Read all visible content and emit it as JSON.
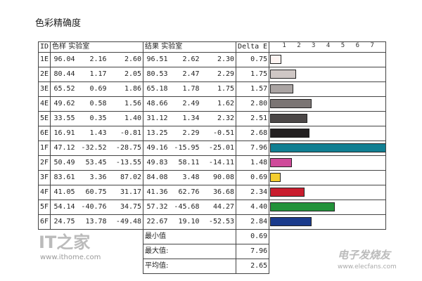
{
  "title": "色彩精确度",
  "headers": {
    "id": "ID",
    "sample": "色样 实验室",
    "result": "结果 实验室",
    "delta": "Delta E"
  },
  "chart_data": {
    "type": "bar",
    "orientation": "horizontal",
    "axis_ticks": [
      "1",
      "2",
      "3",
      "4",
      "5",
      "6",
      "7"
    ],
    "xlim": [
      0,
      7.96
    ],
    "rows": [
      {
        "id": "1E",
        "sample": [
          "96.04",
          "2.16",
          "2.60"
        ],
        "result": [
          "96.51",
          "2.62",
          "2.30"
        ],
        "delta": "0.75",
        "value": 0.75,
        "color": "#fdf4f2"
      },
      {
        "id": "2E",
        "sample": [
          "80.44",
          "1.17",
          "2.05"
        ],
        "result": [
          "80.53",
          "2.47",
          "2.29"
        ],
        "delta": "1.75",
        "value": 1.75,
        "color": "#cfc7c5"
      },
      {
        "id": "3E",
        "sample": [
          "65.52",
          "0.69",
          "1.86"
        ],
        "result": [
          "65.18",
          "1.78",
          "1.75"
        ],
        "delta": "1.57",
        "value": 1.57,
        "color": "#aaa4a3"
      },
      {
        "id": "4E",
        "sample": [
          "49.62",
          "0.58",
          "1.56"
        ],
        "result": [
          "48.66",
          "2.49",
          "1.62"
        ],
        "delta": "2.80",
        "value": 2.8,
        "color": "#7b7574"
      },
      {
        "id": "5E",
        "sample": [
          "33.55",
          "0.35",
          "1.40"
        ],
        "result": [
          "31.12",
          "1.34",
          "2.32"
        ],
        "delta": "2.51",
        "value": 2.51,
        "color": "#4b4747"
      },
      {
        "id": "6E",
        "sample": [
          "16.91",
          "1.43",
          "-0.81"
        ],
        "result": [
          "13.25",
          "2.29",
          "-0.51"
        ],
        "delta": "2.68",
        "value": 2.68,
        "color": "#232021"
      },
      {
        "id": "1F",
        "sample": [
          "47.12",
          "-32.52",
          "-28.75"
        ],
        "result": [
          "49.16",
          "-15.95",
          "-25.01"
        ],
        "delta": "7.96",
        "value": 7.96,
        "color": "#117f92"
      },
      {
        "id": "2F",
        "sample": [
          "50.49",
          "53.45",
          "-13.55"
        ],
        "result": [
          "49.83",
          "58.11",
          "-14.11"
        ],
        "delta": "1.48",
        "value": 1.48,
        "color": "#cf4a9a"
      },
      {
        "id": "3F",
        "sample": [
          "83.61",
          "3.36",
          "87.02"
        ],
        "result": [
          "84.08",
          "3.48",
          "90.08"
        ],
        "delta": "0.69",
        "value": 0.69,
        "color": "#f4cd2e"
      },
      {
        "id": "4F",
        "sample": [
          "41.05",
          "60.75",
          "31.17"
        ],
        "result": [
          "41.36",
          "62.76",
          "36.68"
        ],
        "delta": "2.34",
        "value": 2.34,
        "color": "#c91d2e"
      },
      {
        "id": "5F",
        "sample": [
          "54.14",
          "-40.76",
          "34.75"
        ],
        "result": [
          "57.32",
          "-45.68",
          "44.27"
        ],
        "delta": "4.40",
        "value": 4.4,
        "color": "#23923a"
      },
      {
        "id": "6F",
        "sample": [
          "24.75",
          "13.78",
          "-49.48"
        ],
        "result": [
          "22.67",
          "19.10",
          "-52.53"
        ],
        "delta": "2.84",
        "value": 2.84,
        "color": "#1b3b8c"
      }
    ],
    "summary": [
      {
        "label": "最小值",
        "value": "0.69"
      },
      {
        "label": "最大值:",
        "value": "7.96"
      },
      {
        "label": "平均值:",
        "value": "2.65"
      }
    ]
  },
  "watermarks": {
    "left_logo": "IT之家",
    "left_url": "www.ithome.com",
    "right_cn": "电子发烧友",
    "right_url": "www.elecfans.com"
  }
}
